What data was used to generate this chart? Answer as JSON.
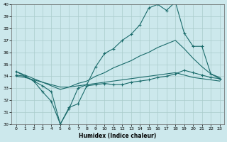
{
  "xlabel": "Humidex (Indice chaleur)",
  "ylabel": "",
  "background_color": "#cce8ec",
  "grid_color": "#aacccc",
  "line_color": "#1a6b6b",
  "xlim": [
    -0.5,
    23.5
  ],
  "ylim": [
    30,
    40
  ],
  "yticks": [
    30,
    31,
    32,
    33,
    34,
    35,
    36,
    37,
    38,
    39,
    40
  ],
  "xticks": [
    0,
    1,
    2,
    3,
    4,
    5,
    6,
    7,
    8,
    9,
    10,
    11,
    12,
    13,
    14,
    15,
    16,
    17,
    18,
    19,
    20,
    21,
    22,
    23
  ],
  "lines": [
    {
      "x": [
        0,
        1,
        2,
        3,
        4,
        5,
        6,
        7,
        8,
        9,
        10,
        11,
        12,
        13,
        14,
        15,
        16,
        17,
        18,
        19,
        20,
        21,
        22,
        23
      ],
      "y": [
        34.4,
        34.0,
        33.6,
        32.7,
        31.9,
        30.0,
        31.3,
        33.0,
        33.3,
        34.8,
        35.9,
        36.3,
        37.0,
        37.5,
        38.3,
        39.7,
        40.0,
        39.5,
        40.2,
        37.6,
        36.5,
        36.5,
        34.2,
        33.8
      ],
      "marker": "+"
    },
    {
      "x": [
        0,
        1,
        2,
        3,
        4,
        5,
        6,
        7,
        8,
        9,
        10,
        11,
        12,
        13,
        14,
        15,
        16,
        17,
        18,
        19,
        20,
        21,
        22,
        23
      ],
      "y": [
        34.4,
        34.1,
        33.8,
        33.5,
        33.2,
        32.9,
        33.1,
        33.4,
        33.6,
        34.0,
        34.3,
        34.7,
        35.0,
        35.3,
        35.7,
        36.0,
        36.4,
        36.7,
        37.0,
        36.3,
        35.5,
        34.8,
        34.2,
        33.9
      ],
      "marker": null
    },
    {
      "x": [
        0,
        1,
        2,
        3,
        4,
        5,
        6,
        7,
        8,
        9,
        10,
        11,
        12,
        13,
        14,
        15,
        16,
        17,
        18,
        19,
        20,
        21,
        22,
        23
      ],
      "y": [
        34.0,
        33.9,
        33.7,
        33.5,
        33.3,
        33.1,
        33.1,
        33.2,
        33.3,
        33.4,
        33.5,
        33.6,
        33.7,
        33.8,
        33.9,
        34.0,
        34.1,
        34.2,
        34.3,
        34.1,
        33.9,
        33.8,
        33.7,
        33.6
      ],
      "marker": null
    },
    {
      "x": [
        0,
        1,
        2,
        3,
        4,
        5,
        6,
        7,
        8,
        9,
        10,
        11,
        12,
        13,
        14,
        15,
        16,
        17,
        18,
        19,
        20,
        21,
        22,
        23
      ],
      "y": [
        34.1,
        34.0,
        33.6,
        33.2,
        32.7,
        30.0,
        31.4,
        31.7,
        33.2,
        33.3,
        33.4,
        33.3,
        33.3,
        33.5,
        33.6,
        33.7,
        33.9,
        34.0,
        34.2,
        34.5,
        34.3,
        34.1,
        33.9,
        33.8
      ],
      "marker": "+"
    }
  ]
}
